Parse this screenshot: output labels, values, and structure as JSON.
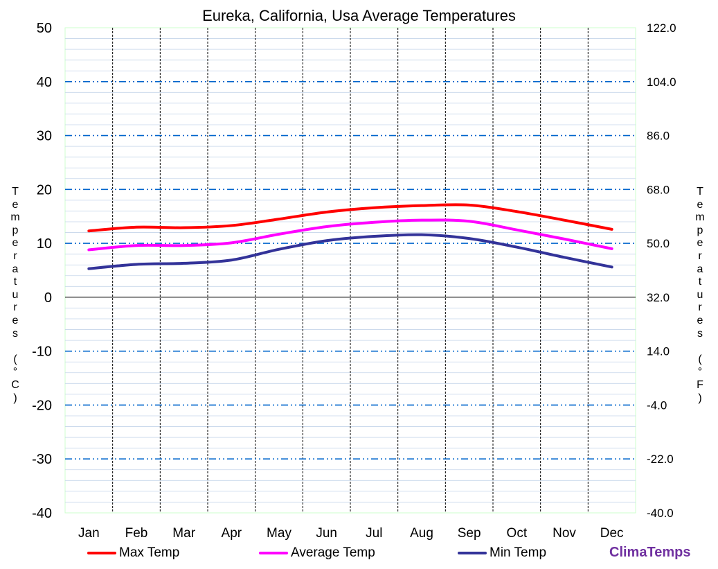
{
  "chart_data": {
    "type": "line",
    "title": "Eureka, California, Usa Average Temperatures",
    "ylabel": "Temperatures (°C)",
    "ylabel_right": "Temperatures (°F)",
    "categories": [
      "Jan",
      "Feb",
      "Mar",
      "Apr",
      "May",
      "Jun",
      "Jul",
      "Aug",
      "Sep",
      "Oct",
      "Nov",
      "Dec"
    ],
    "ylim": [
      -40,
      50
    ],
    "y_ticks": [
      "50",
      "40",
      "30",
      "20",
      "10",
      "0",
      "-10",
      "-20",
      "-30",
      "-40"
    ],
    "y2_ticks": [
      "122.0",
      "104.0",
      "86.0",
      "68.0",
      "50.0",
      "32.0",
      "14.0",
      "-4.0",
      "-22.0",
      "-40.0"
    ],
    "series": [
      {
        "name": "Max Temp",
        "color": "#ff0000",
        "values": [
          12.3,
          13.0,
          12.9,
          13.3,
          14.5,
          15.8,
          16.6,
          17.0,
          17.1,
          15.9,
          14.3,
          12.6
        ]
      },
      {
        "name": "Average Temp",
        "color": "#ff00ff",
        "values": [
          8.8,
          9.6,
          9.6,
          10.1,
          11.7,
          13.1,
          13.9,
          14.3,
          14.1,
          12.5,
          10.8,
          9.0
        ]
      },
      {
        "name": "Min Temp",
        "color": "#333399",
        "values": [
          5.3,
          6.1,
          6.3,
          6.9,
          8.9,
          10.5,
          11.3,
          11.6,
          10.9,
          9.3,
          7.4,
          5.6
        ]
      }
    ],
    "grid": true,
    "legend_position": "bottom"
  },
  "brand": "ClimaTemps"
}
